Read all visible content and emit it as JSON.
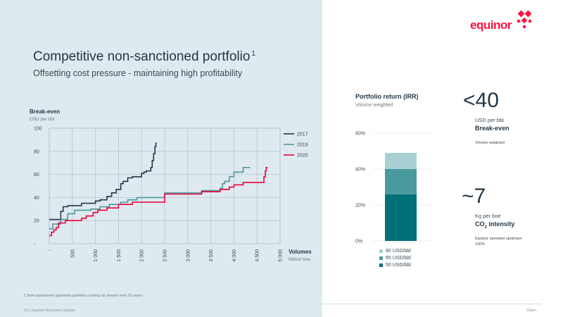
{
  "slide": {
    "title": "Competitive non-sanctioned portfolio",
    "title_sup": "1",
    "subtitle": "Offsetting cost pressure - maintaining high profitability",
    "footnote": "1   Non-sanctioned upstream portfolio coming on stream next 10 years",
    "footer_left": "15  |  Equinor Business Update",
    "footer_right": "Open",
    "logo_text": "equinor",
    "colors": {
      "left_bg": "#dfe9f0",
      "brand": "#ff1243",
      "text": "#243746"
    }
  },
  "kpis": [
    {
      "value": "<40",
      "unit": "USD per bbl",
      "label": "Break-even",
      "note": "Volume weighted"
    },
    {
      "value": "~7",
      "unit": "Kg per boe",
      "label": "CO",
      "label_sub": "2",
      "label_rest": " intensity",
      "note": "Equinor operated upstream",
      "note2": "100%"
    }
  ],
  "chart_data": [
    {
      "type": "line",
      "title": "",
      "ylabel": "Break-even",
      "yunit": "USD per bbl",
      "xlabel": "Volumes",
      "xunit": "Million boe",
      "ylim": [
        0,
        100
      ],
      "xlim": [
        0,
        5000
      ],
      "yticks": [
        {
          "v": 0,
          "label": "-"
        },
        {
          "v": 20,
          "label": "20"
        },
        {
          "v": 40,
          "label": "40"
        },
        {
          "v": 60,
          "label": "60"
        },
        {
          "v": 80,
          "label": "80"
        },
        {
          "v": 100,
          "label": "100"
        }
      ],
      "xticks": [
        {
          "v": 0,
          "label": "-"
        },
        {
          "v": 500,
          "label": "500"
        },
        {
          "v": 1000,
          "label": "1 000"
        },
        {
          "v": 1500,
          "label": "1 500"
        },
        {
          "v": 2000,
          "label": "2 000"
        },
        {
          "v": 2500,
          "label": "2 500"
        },
        {
          "v": 3000,
          "label": "3 000"
        },
        {
          "v": 3500,
          "label": "3 500"
        },
        {
          "v": 4000,
          "label": "4 000"
        },
        {
          "v": 4500,
          "label": "4 500"
        },
        {
          "v": 5000,
          "label": "5 000"
        }
      ],
      "grid": true,
      "legend": "top-right",
      "series": [
        {
          "name": "2017",
          "color": "#243746",
          "x": [
            0,
            20,
            20,
            250,
            250,
            300,
            300,
            400,
            400,
            700,
            700,
            1000,
            1000,
            1100,
            1100,
            1250,
            1250,
            1350,
            1350,
            1450,
            1450,
            1550,
            1550,
            1600,
            1600,
            1700,
            1700,
            1800,
            1800,
            2000,
            2000,
            2050,
            2050,
            2100,
            2100,
            2200,
            2200,
            2230,
            2230,
            2260,
            2260,
            2290,
            2290,
            2310,
            2310,
            2330
          ],
          "y": [
            21,
            21,
            21,
            21,
            28,
            28,
            32,
            32,
            33,
            33,
            35,
            35,
            37,
            37,
            38,
            38,
            41,
            41,
            44,
            44,
            47,
            47,
            52,
            52,
            54,
            54,
            57,
            57,
            58,
            58,
            61,
            61,
            62,
            62,
            63,
            63,
            66,
            66,
            72,
            72,
            78,
            78,
            84,
            84,
            87,
            87
          ]
        },
        {
          "name": "2019",
          "color": "#4a9a9d",
          "x": [
            0,
            80,
            80,
            250,
            250,
            400,
            400,
            550,
            550,
            900,
            900,
            1100,
            1100,
            1300,
            1300,
            1550,
            1550,
            1700,
            1700,
            1900,
            1900,
            2500,
            2500,
            3300,
            3300,
            3700,
            3700,
            3750,
            3750,
            3800,
            3800,
            3900,
            3900,
            4000,
            4000,
            4200,
            4200,
            4350
          ],
          "y": [
            13,
            13,
            17,
            17,
            21,
            21,
            26,
            26,
            29,
            29,
            30,
            30,
            32,
            32,
            34,
            34,
            36,
            36,
            38,
            38,
            40,
            40,
            44,
            44,
            46,
            46,
            48,
            48,
            52,
            52,
            54,
            54,
            58,
            58,
            62,
            62,
            66,
            66
          ]
        },
        {
          "name": "2020",
          "color": "#eb0037",
          "x": [
            0,
            50,
            50,
            100,
            100,
            150,
            150,
            200,
            200,
            350,
            350,
            700,
            700,
            800,
            800,
            950,
            950,
            1050,
            1050,
            1250,
            1250,
            1500,
            1500,
            1800,
            1800,
            2500,
            2500,
            3300,
            3300,
            3700,
            3700,
            3900,
            3900,
            4000,
            4000,
            4200,
            4200,
            4650,
            4650,
            4680,
            4680,
            4700,
            4700,
            4730
          ],
          "y": [
            7,
            7,
            10,
            10,
            12,
            12,
            14,
            14,
            18,
            18,
            20,
            20,
            22,
            22,
            24,
            24,
            27,
            27,
            29,
            29,
            31,
            31,
            34,
            34,
            36,
            36,
            43,
            43,
            45,
            45,
            47,
            47,
            49,
            49,
            51,
            51,
            53,
            53,
            58,
            58,
            63,
            63,
            66,
            66
          ]
        }
      ]
    },
    {
      "type": "bar",
      "title": "Portfolio return (IRR)",
      "subtitle": "Volume weighted",
      "ylim": [
        0,
        60
      ],
      "yticks": [
        {
          "v": 0,
          "label": "0%"
        },
        {
          "v": 20,
          "label": "20%"
        },
        {
          "v": 40,
          "label": "40%"
        },
        {
          "v": 60,
          "label": "60%"
        }
      ],
      "stack": [
        {
          "name": "50 USD/bbl",
          "from": 0,
          "to": 26,
          "color": "#007079"
        },
        {
          "name": "65 USD/bbl",
          "from": 26,
          "to": 40,
          "color": "#4a9a9d"
        },
        {
          "name": "80 USD/bbl",
          "from": 40,
          "to": 49,
          "color": "#a9d0d2"
        }
      ],
      "legend_order": [
        "80 USD/bbl",
        "65 USD/bbl",
        "50 USD/bbl"
      ]
    }
  ]
}
